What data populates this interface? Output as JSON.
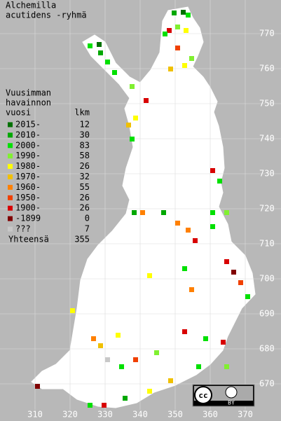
{
  "title": [
    "Alchemilla",
    "acutidens -ryhmä"
  ],
  "legend": {
    "heading": [
      "Vuusimman",
      "havainnon"
    ],
    "col_year": "vuosi",
    "col_count": "lkm",
    "rows": [
      {
        "label": "2015-",
        "count": 12,
        "color": "#007000"
      },
      {
        "label": "2010-",
        "count": 30,
        "color": "#00a800"
      },
      {
        "label": "2000-",
        "count": 83,
        "color": "#00e000"
      },
      {
        "label": "1990-",
        "count": 58,
        "color": "#80f030"
      },
      {
        "label": "1980-",
        "count": 26,
        "color": "#ffff00"
      },
      {
        "label": "1970-",
        "count": 32,
        "color": "#f0c000"
      },
      {
        "label": "1960-",
        "count": 55,
        "color": "#ff8000"
      },
      {
        "label": "1950-",
        "count": 26,
        "color": "#f04000"
      },
      {
        "label": "1900-",
        "count": 26,
        "color": "#d80000"
      },
      {
        "label": "-1899",
        "count": 0,
        "color": "#800000"
      },
      {
        "label": "???",
        "count": 7,
        "color": "#c8c8c8"
      }
    ],
    "total": {
      "label": "Yhteensä",
      "count": 355
    }
  },
  "grid": {
    "northing": [
      770,
      760,
      750,
      740,
      730,
      720,
      710,
      700,
      690,
      680,
      670
    ],
    "easting": [
      310,
      320,
      330,
      340,
      350,
      360,
      370
    ]
  },
  "license": {
    "logo": "cc",
    "by": "BY"
  }
}
